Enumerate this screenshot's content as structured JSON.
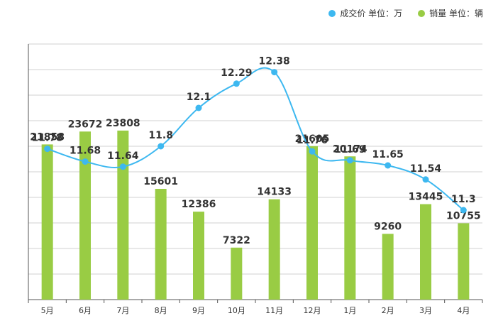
{
  "legend": [
    {
      "key": "price",
      "label": "成交价  单位：万",
      "color": "#3db8f0"
    },
    {
      "key": "sales",
      "label": "销量  单位：辆",
      "color": "#99cc44"
    }
  ],
  "chart_data": {
    "type": "bar+line",
    "categories": [
      "5月",
      "6月",
      "7月",
      "8月",
      "9月",
      "10月",
      "11月",
      "12月",
      "1月",
      "2月",
      "3月",
      "4月"
    ],
    "series": [
      {
        "name": "成交价  单位：万",
        "type": "line",
        "color": "#3db8f0",
        "values": [
          11.78,
          11.68,
          11.64,
          11.8,
          12.1,
          12.29,
          12.38,
          11.76,
          11.69,
          11.65,
          11.54,
          11.3
        ]
      },
      {
        "name": "销量  单位：辆",
        "type": "bar",
        "color": "#99cc44",
        "values": [
          21858,
          23672,
          23808,
          15601,
          12386,
          7322,
          14133,
          21605,
          20174,
          9260,
          13445,
          10755
        ]
      }
    ],
    "grid": true,
    "legend_position": "top-right"
  }
}
